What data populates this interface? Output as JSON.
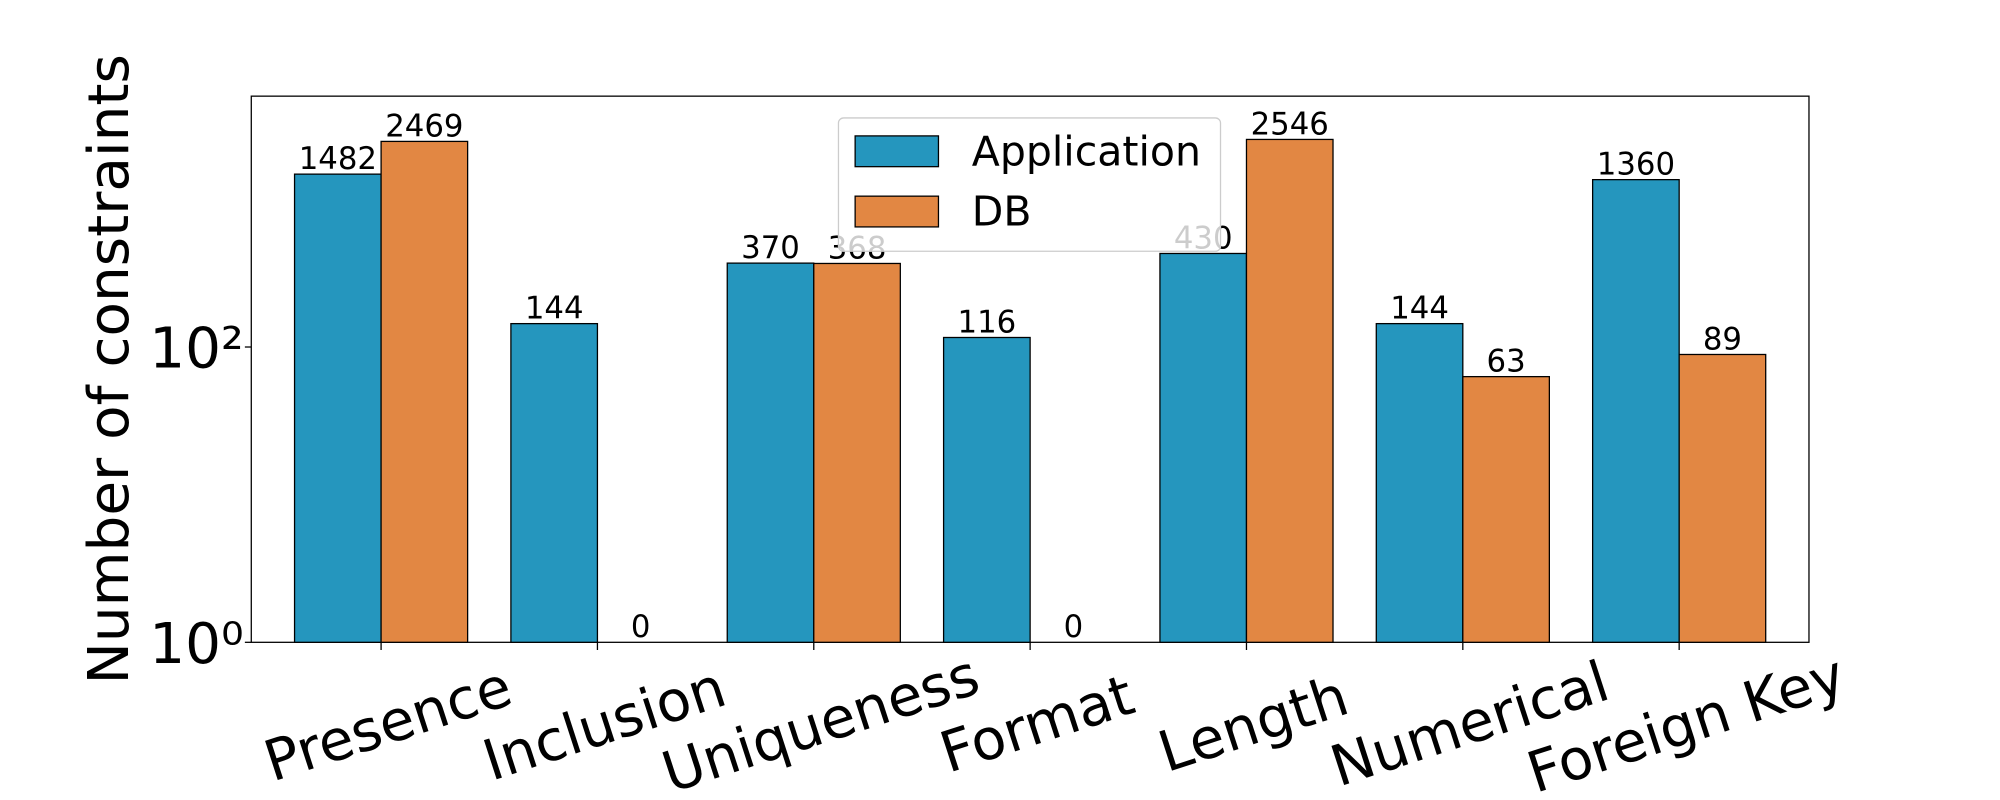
{
  "chart_data": {
    "type": "bar",
    "y_label": "Number of constraints",
    "categories": [
      "Presence",
      "Inclusion",
      "Uniqueness",
      "Format",
      "Length",
      "Numerical",
      "Foreign Key"
    ],
    "series": [
      {
        "name": "Application",
        "color": "#2596be",
        "values": [
          1482,
          144,
          370,
          116,
          430,
          144,
          1360
        ]
      },
      {
        "name": "DB",
        "color": "#e28743",
        "values": [
          2469,
          0,
          368,
          0,
          2546,
          63,
          89
        ]
      }
    ],
    "y_scale": "log",
    "ylim": [
      1,
      5000
    ],
    "yticks": [
      {
        "value": 1,
        "label": "10⁰"
      },
      {
        "value": 100,
        "label": "10²"
      }
    ],
    "legend": "upper center"
  }
}
